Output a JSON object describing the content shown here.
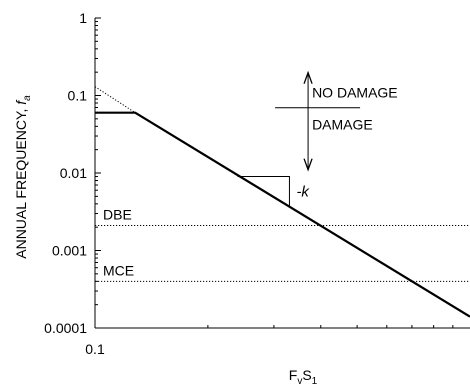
{
  "chart_data": {
    "type": "line",
    "xscale": "log",
    "yscale": "log",
    "xlim": [
      0.1,
      1.0
    ],
    "ylim": [
      0.0001,
      1
    ],
    "xlabel": "F_vS_1",
    "ylabel": "ANNUAL FREQUENCY, f_a",
    "xlabel_parts": {
      "f": "F",
      "v": "v",
      "s": "S",
      "one": "1"
    },
    "ylabel_parts": {
      "main": "ANNUAL FREQUENCY, ",
      "f": "f",
      "a": "a"
    },
    "x_ticks": [
      {
        "value": 0.1,
        "label": "0.1"
      }
    ],
    "y_ticks": [
      {
        "value": 1,
        "label": "1"
      },
      {
        "value": 0.1,
        "label": "0.1"
      },
      {
        "value": 0.01,
        "label": "0.01"
      },
      {
        "value": 0.001,
        "label": "0.001"
      },
      {
        "value": 0.0001,
        "label": "0.0001"
      }
    ],
    "series": [
      {
        "style": "solid",
        "points": [
          [
            0.1,
            0.06
          ],
          [
            0.128,
            0.06
          ],
          [
            1.0,
            0.00014
          ]
        ]
      },
      {
        "style": "dotted",
        "points": [
          [
            0.1,
            0.13
          ],
          [
            0.128,
            0.06
          ]
        ]
      }
    ],
    "reference_lines": [
      {
        "label": "DBE",
        "y": 0.0021
      },
      {
        "label": "MCE",
        "y": 0.0004
      }
    ],
    "slope_label": "-k",
    "slope_triangle": {
      "x1": 0.24,
      "x2": 0.33,
      "y": 0.009
    },
    "annotations": {
      "no_damage": "NO DAMAGE",
      "damage": "DAMAGE",
      "cross_x": 0.37,
      "cross_y": 0.06
    }
  }
}
